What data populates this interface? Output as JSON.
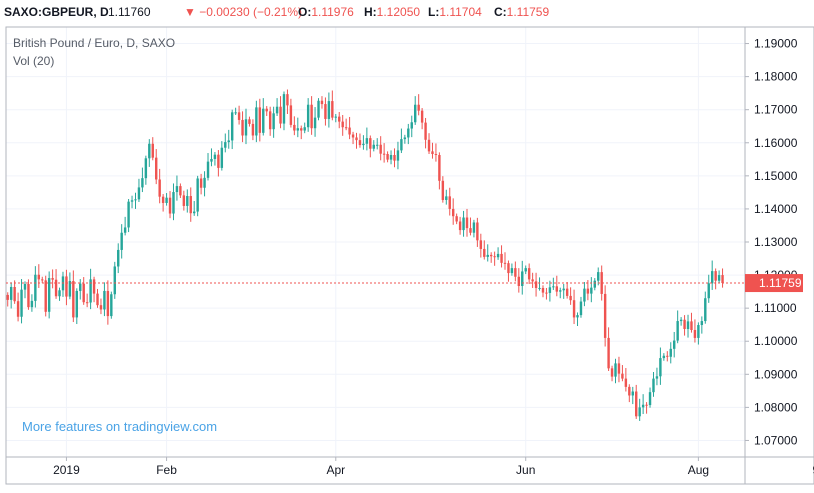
{
  "header": {
    "symbol": "SAXO:GBPEUR, D",
    "last": "1.11760",
    "change_arrow": "▼",
    "change": "−0.00230 (−0.21%)",
    "open_label": "O:",
    "open": "1.11976",
    "high_label": "H:",
    "high": "1.12050",
    "low_label": "L:",
    "low": "1.11704",
    "close_label": "C:",
    "close": "1.11759"
  },
  "legend": {
    "title": "British Pound / Euro, D, SAXO",
    "volume": "Vol (20)"
  },
  "watermark": "More features on tradingview.com",
  "colors": {
    "up": "#26a69a",
    "down": "#ef5350",
    "grid": "#f0f3fa",
    "axis_text": "#131722",
    "price_tag": "#ef5350"
  },
  "chart_data": {
    "type": "candlestick",
    "title": "British Pound / Euro, D, SAXO",
    "ylim": [
      1.065,
      1.195
    ],
    "y_ticks": [
      "1.19000",
      "1.18000",
      "1.17000",
      "1.16000",
      "1.15000",
      "1.14000",
      "1.13000",
      "1.12000",
      "1.11000",
      "1.10000",
      "1.09000",
      "1.08000",
      "1.07000"
    ],
    "x_ticks": [
      "2019",
      "Feb",
      "Apr",
      "Jun",
      "Aug",
      "9"
    ],
    "x_tick_index": [
      17,
      46,
      95,
      150,
      200,
      234
    ],
    "last_price_label": "1.11759",
    "last_price": 1.11759,
    "close_series": [
      1.1125,
      1.1164,
      1.1121,
      1.1074,
      1.1156,
      1.1173,
      1.1103,
      1.1122,
      1.1201,
      1.1187,
      1.1184,
      1.1089,
      1.1191,
      1.1186,
      1.1136,
      1.1154,
      1.1196,
      1.1135,
      1.1182,
      1.1072,
      1.1152,
      1.1174,
      1.1118,
      1.1117,
      1.1187,
      1.1144,
      1.1109,
      1.1096,
      1.1152,
      1.1076,
      1.1142,
      1.1226,
      1.1276,
      1.1328,
      1.1344,
      1.1422,
      1.1426,
      1.1429,
      1.1465,
      1.1493,
      1.1553,
      1.1597,
      1.1555,
      1.1489,
      1.1437,
      1.1418,
      1.1434,
      1.1386,
      1.1451,
      1.1469,
      1.1441,
      1.1409,
      1.1439,
      1.1387,
      1.1392,
      1.1492,
      1.1464,
      1.1494,
      1.1543,
      1.1551,
      1.1564,
      1.1524,
      1.1585,
      1.1602,
      1.1607,
      1.1692,
      1.1692,
      1.1669,
      1.1622,
      1.1671,
      1.1657,
      1.1622,
      1.1707,
      1.163,
      1.1703,
      1.1695,
      1.1641,
      1.1689,
      1.1709,
      1.1658,
      1.1747,
      1.1713,
      1.1654,
      1.1637,
      1.1644,
      1.1637,
      1.1647,
      1.1715,
      1.1644,
      1.1676,
      1.1727,
      1.1717,
      1.1672,
      1.1726,
      1.1676,
      1.1679,
      1.1664,
      1.1647,
      1.1646,
      1.1625,
      1.1616,
      1.1608,
      1.1593,
      1.1597,
      1.1614,
      1.1582,
      1.1594,
      1.1594,
      1.1567,
      1.1566,
      1.1549,
      1.1563,
      1.1546,
      1.1577,
      1.1611,
      1.1616,
      1.1643,
      1.1662,
      1.1715,
      1.1697,
      1.1661,
      1.1609,
      1.1574,
      1.1566,
      1.1563,
      1.1485,
      1.1427,
      1.1438,
      1.14,
      1.1378,
      1.1362,
      1.1336,
      1.1374,
      1.1342,
      1.1328,
      1.1359,
      1.1305,
      1.1279,
      1.1255,
      1.1261,
      1.1257,
      1.1254,
      1.1264,
      1.1237,
      1.1236,
      1.1206,
      1.1221,
      1.1195,
      1.1167,
      1.1211,
      1.1221,
      1.1187,
      1.1181,
      1.1161,
      1.1161,
      1.1147,
      1.1146,
      1.1163,
      1.1166,
      1.115,
      1.1154,
      1.1159,
      1.1137,
      1.1124,
      1.1072,
      1.1079,
      1.112,
      1.1159,
      1.1144,
      1.1162,
      1.1183,
      1.1209,
      1.1143,
      1.101,
      1.0918,
      1.0893,
      1.0933,
      1.0902,
      1.0887,
      1.0862,
      1.0836,
      1.0848,
      1.0773,
      1.08,
      1.0808,
      1.0807,
      1.0846,
      1.0887,
      1.0894,
      1.0949,
      1.0956,
      1.0953,
      1.0977,
      1.1002,
      1.1061,
      1.1065,
      1.1037,
      1.106,
      1.1034,
      1.101,
      1.1049,
      1.1061,
      1.113,
      1.1175,
      1.1212,
      1.1183,
      1.12,
      1.1176
    ]
  }
}
